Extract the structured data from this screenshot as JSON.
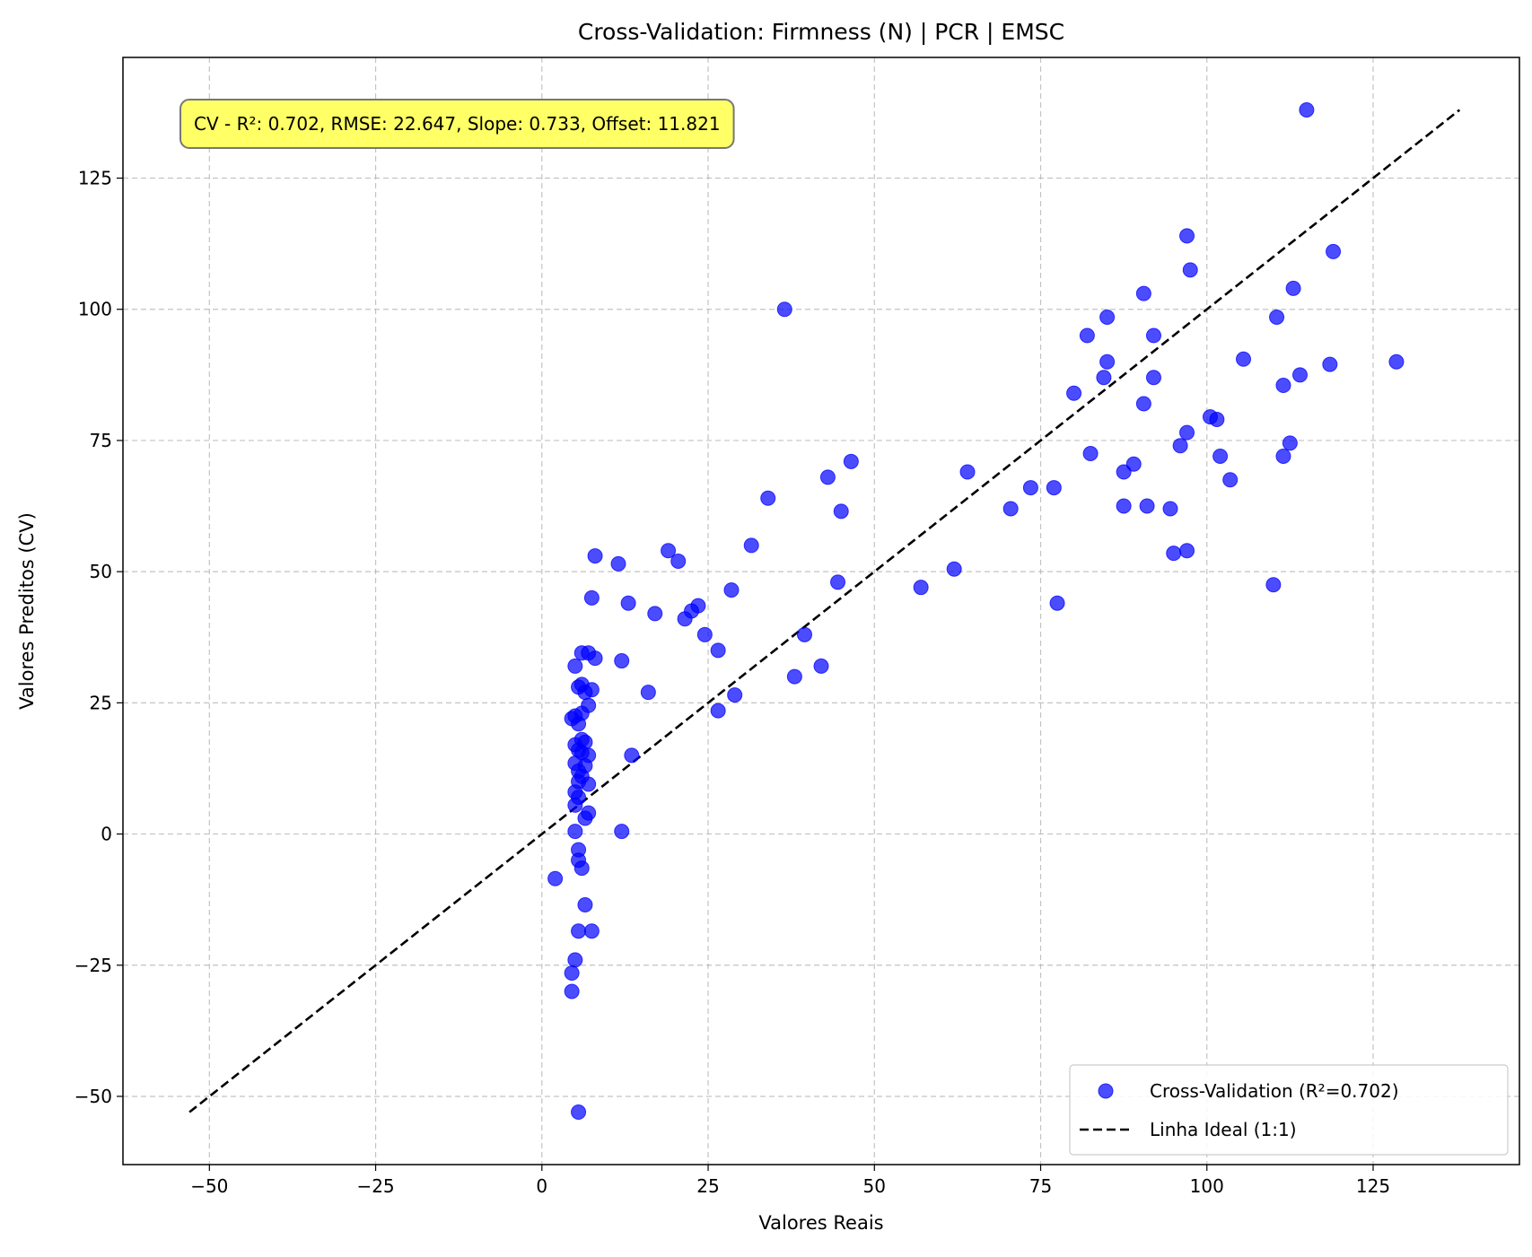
{
  "chart_data": {
    "type": "scatter",
    "title": "Cross-Validation: Firmness (N) | PCR | EMSC",
    "xlabel": "Valores Reais",
    "ylabel": "Valores Preditos (CV)",
    "xlim": [
      -63,
      147
    ],
    "ylim": [
      -63,
      148
    ],
    "xticks": [
      -50,
      -25,
      0,
      25,
      50,
      75,
      100,
      125
    ],
    "yticks": [
      -50,
      -25,
      0,
      25,
      50,
      75,
      100,
      125
    ],
    "xtick_labels": [
      "−50",
      "−25",
      "0",
      "25",
      "50",
      "75",
      "100",
      "125"
    ],
    "ytick_labels": [
      "−50",
      "−25",
      "0",
      "25",
      "50",
      "75",
      "100",
      "125"
    ],
    "grid": true,
    "annotation": "CV - R²: 0.702, RMSE: 22.647, Slope: 0.733, Offset: 11.821",
    "legend_position": "lower-right",
    "colors": {
      "points": "#0000ff",
      "ideal_line": "#000000",
      "annotation_bg": "#ffff66"
    },
    "series": [
      {
        "name": "Cross-Validation (R²=0.702)",
        "kind": "scatter",
        "points": [
          [
            115.0,
            138.0
          ],
          [
            97.0,
            114.0
          ],
          [
            119.0,
            111.0
          ],
          [
            97.5,
            107.5
          ],
          [
            113.0,
            104.0
          ],
          [
            36.5,
            100.0
          ],
          [
            90.5,
            103.0
          ],
          [
            85.0,
            98.5
          ],
          [
            110.5,
            98.5
          ],
          [
            82.0,
            95.0
          ],
          [
            92.0,
            95.0
          ],
          [
            85.0,
            90.0
          ],
          [
            105.5,
            90.5
          ],
          [
            118.5,
            89.5
          ],
          [
            128.5,
            90.0
          ],
          [
            84.5,
            87.0
          ],
          [
            92.0,
            87.0
          ],
          [
            114.0,
            87.5
          ],
          [
            111.5,
            85.5
          ],
          [
            80.0,
            84.0
          ],
          [
            90.5,
            82.0
          ],
          [
            100.5,
            79.5
          ],
          [
            101.5,
            79.0
          ],
          [
            97.0,
            76.5
          ],
          [
            96.0,
            74.0
          ],
          [
            112.5,
            74.5
          ],
          [
            82.5,
            72.5
          ],
          [
            102.0,
            72.0
          ],
          [
            111.5,
            72.0
          ],
          [
            46.5,
            71.0
          ],
          [
            89.0,
            70.5
          ],
          [
            87.5,
            69.0
          ],
          [
            64.0,
            69.0
          ],
          [
            43.0,
            68.0
          ],
          [
            103.5,
            67.5
          ],
          [
            73.5,
            66.0
          ],
          [
            77.0,
            66.0
          ],
          [
            34.0,
            64.0
          ],
          [
            87.5,
            62.5
          ],
          [
            91.0,
            62.5
          ],
          [
            94.5,
            62.0
          ],
          [
            70.5,
            62.0
          ],
          [
            45.0,
            61.5
          ],
          [
            31.5,
            55.0
          ],
          [
            19.0,
            54.0
          ],
          [
            95.0,
            53.5
          ],
          [
            97.0,
            54.0
          ],
          [
            8.0,
            53.0
          ],
          [
            20.5,
            52.0
          ],
          [
            11.5,
            51.5
          ],
          [
            62.0,
            50.5
          ],
          [
            44.5,
            48.0
          ],
          [
            110.0,
            47.5
          ],
          [
            57.0,
            47.0
          ],
          [
            28.5,
            46.5
          ],
          [
            7.5,
            45.0
          ],
          [
            13.0,
            44.0
          ],
          [
            77.5,
            44.0
          ],
          [
            23.5,
            43.5
          ],
          [
            22.5,
            42.5
          ],
          [
            17.0,
            42.0
          ],
          [
            21.5,
            41.0
          ],
          [
            24.5,
            38.0
          ],
          [
            39.5,
            38.0
          ],
          [
            26.5,
            35.0
          ],
          [
            6.0,
            34.5
          ],
          [
            7.0,
            34.5
          ],
          [
            8.0,
            33.5
          ],
          [
            12.0,
            33.0
          ],
          [
            5.0,
            32.0
          ],
          [
            42.0,
            32.0
          ],
          [
            38.0,
            30.0
          ],
          [
            5.5,
            28.0
          ],
          [
            6.0,
            28.5
          ],
          [
            6.5,
            27.0
          ],
          [
            7.5,
            27.5
          ],
          [
            16.0,
            27.0
          ],
          [
            29.0,
            26.5
          ],
          [
            7.0,
            24.5
          ],
          [
            26.5,
            23.5
          ],
          [
            6.0,
            23.0
          ],
          [
            4.5,
            22.0
          ],
          [
            5.0,
            22.5
          ],
          [
            5.5,
            21.0
          ],
          [
            6.0,
            18.0
          ],
          [
            6.5,
            17.5
          ],
          [
            5.0,
            17.0
          ],
          [
            5.5,
            16.0
          ],
          [
            6.0,
            15.5
          ],
          [
            7.0,
            15.0
          ],
          [
            13.5,
            15.0
          ],
          [
            5.0,
            13.5
          ],
          [
            6.5,
            13.0
          ],
          [
            5.5,
            12.0
          ],
          [
            6.0,
            11.0
          ],
          [
            5.5,
            10.0
          ],
          [
            7.0,
            9.5
          ],
          [
            5.0,
            8.0
          ],
          [
            5.5,
            7.0
          ],
          [
            5.0,
            5.5
          ],
          [
            7.0,
            4.0
          ],
          [
            6.5,
            3.0
          ],
          [
            5.0,
            0.5
          ],
          [
            12.0,
            0.5
          ],
          [
            5.5,
            -3.0
          ],
          [
            5.5,
            -5.0
          ],
          [
            6.0,
            -6.5
          ],
          [
            2.0,
            -8.5
          ],
          [
            6.5,
            -13.5
          ],
          [
            5.5,
            -18.5
          ],
          [
            7.5,
            -18.5
          ],
          [
            5.0,
            -24.0
          ],
          [
            4.5,
            -26.5
          ],
          [
            4.5,
            -30.0
          ],
          [
            5.5,
            -53.0
          ]
        ]
      },
      {
        "name": "Linha Ideal (1:1)",
        "kind": "line",
        "x": [
          -53,
          138
        ],
        "y": [
          -53,
          138
        ]
      }
    ]
  }
}
